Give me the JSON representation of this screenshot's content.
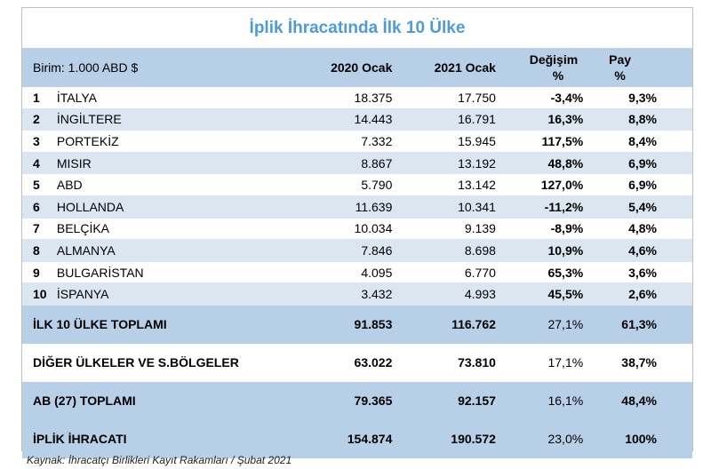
{
  "title": "İplik İhracatında İlk 10 Ülke",
  "header": {
    "unit": "Birim: 1.000 ABD $",
    "col_2020": "2020 Ocak",
    "col_2021": "2021 Ocak",
    "col_change_top": "Değişim",
    "col_change_bottom": "%",
    "col_share_top": "Pay",
    "col_share_bottom": "%"
  },
  "rows": [
    {
      "rank": "1",
      "country": "İTALYA",
      "v2020": "18.375",
      "v2021": "17.750",
      "change": "-3,4%",
      "share": "9,3%"
    },
    {
      "rank": "2",
      "country": "İNGİLTERE",
      "v2020": "14.443",
      "v2021": "16.791",
      "change": "16,3%",
      "share": "8,8%"
    },
    {
      "rank": "3",
      "country": "PORTEKİZ",
      "v2020": "7.332",
      "v2021": "15.945",
      "change": "117,5%",
      "share": "8,4%"
    },
    {
      "rank": "4",
      "country": "MISIR",
      "v2020": "8.867",
      "v2021": "13.192",
      "change": "48,8%",
      "share": "6,9%"
    },
    {
      "rank": "5",
      "country": "ABD",
      "v2020": "5.790",
      "v2021": "13.142",
      "change": "127,0%",
      "share": "6,9%"
    },
    {
      "rank": "6",
      "country": "HOLLANDA",
      "v2020": "11.639",
      "v2021": "10.341",
      "change": "-11,2%",
      "share": "5,4%"
    },
    {
      "rank": "7",
      "country": "BELÇİKA",
      "v2020": "10.034",
      "v2021": "9.139",
      "change": "-8,9%",
      "share": "4,8%"
    },
    {
      "rank": "8",
      "country": "ALMANYA",
      "v2020": "7.846",
      "v2021": "8.698",
      "change": "10,9%",
      "share": "4,6%"
    },
    {
      "rank": "9",
      "country": "BULGARİSTAN",
      "v2020": "4.095",
      "v2021": "6.770",
      "change": "65,3%",
      "share": "3,6%"
    },
    {
      "rank": "10",
      "country": "İSPANYA",
      "v2020": "3.432",
      "v2021": "4.993",
      "change": "45,5%",
      "share": "2,6%"
    }
  ],
  "totals": [
    {
      "label": "İLK 10 ÜLKE TOPLAMI",
      "v2020": "91.853",
      "v2021": "116.762",
      "change": "27,1%",
      "share": "61,3%"
    },
    {
      "label": "DİĞER ÜLKELER VE S.BÖLGELER",
      "v2020": "63.022",
      "v2021": "73.810",
      "change": "17,1%",
      "share": "38,7%"
    },
    {
      "label": "AB (27) TOPLAMI",
      "v2020": "79.365",
      "v2021": "92.157",
      "change": "16,1%",
      "share": "48,4%"
    },
    {
      "label": "İPLİK İHRACATI",
      "v2020": "154.874",
      "v2021": "190.572",
      "change": "23,0%",
      "share": "100%"
    }
  ],
  "source": "Kaynak: İhracatçı Birlikleri Kayıt Rakamları / Şubat 2021",
  "colors": {
    "title": "#4f9bd6",
    "header_bg": "#b8cfe8",
    "alt_row_bg": "#dce6f1"
  }
}
